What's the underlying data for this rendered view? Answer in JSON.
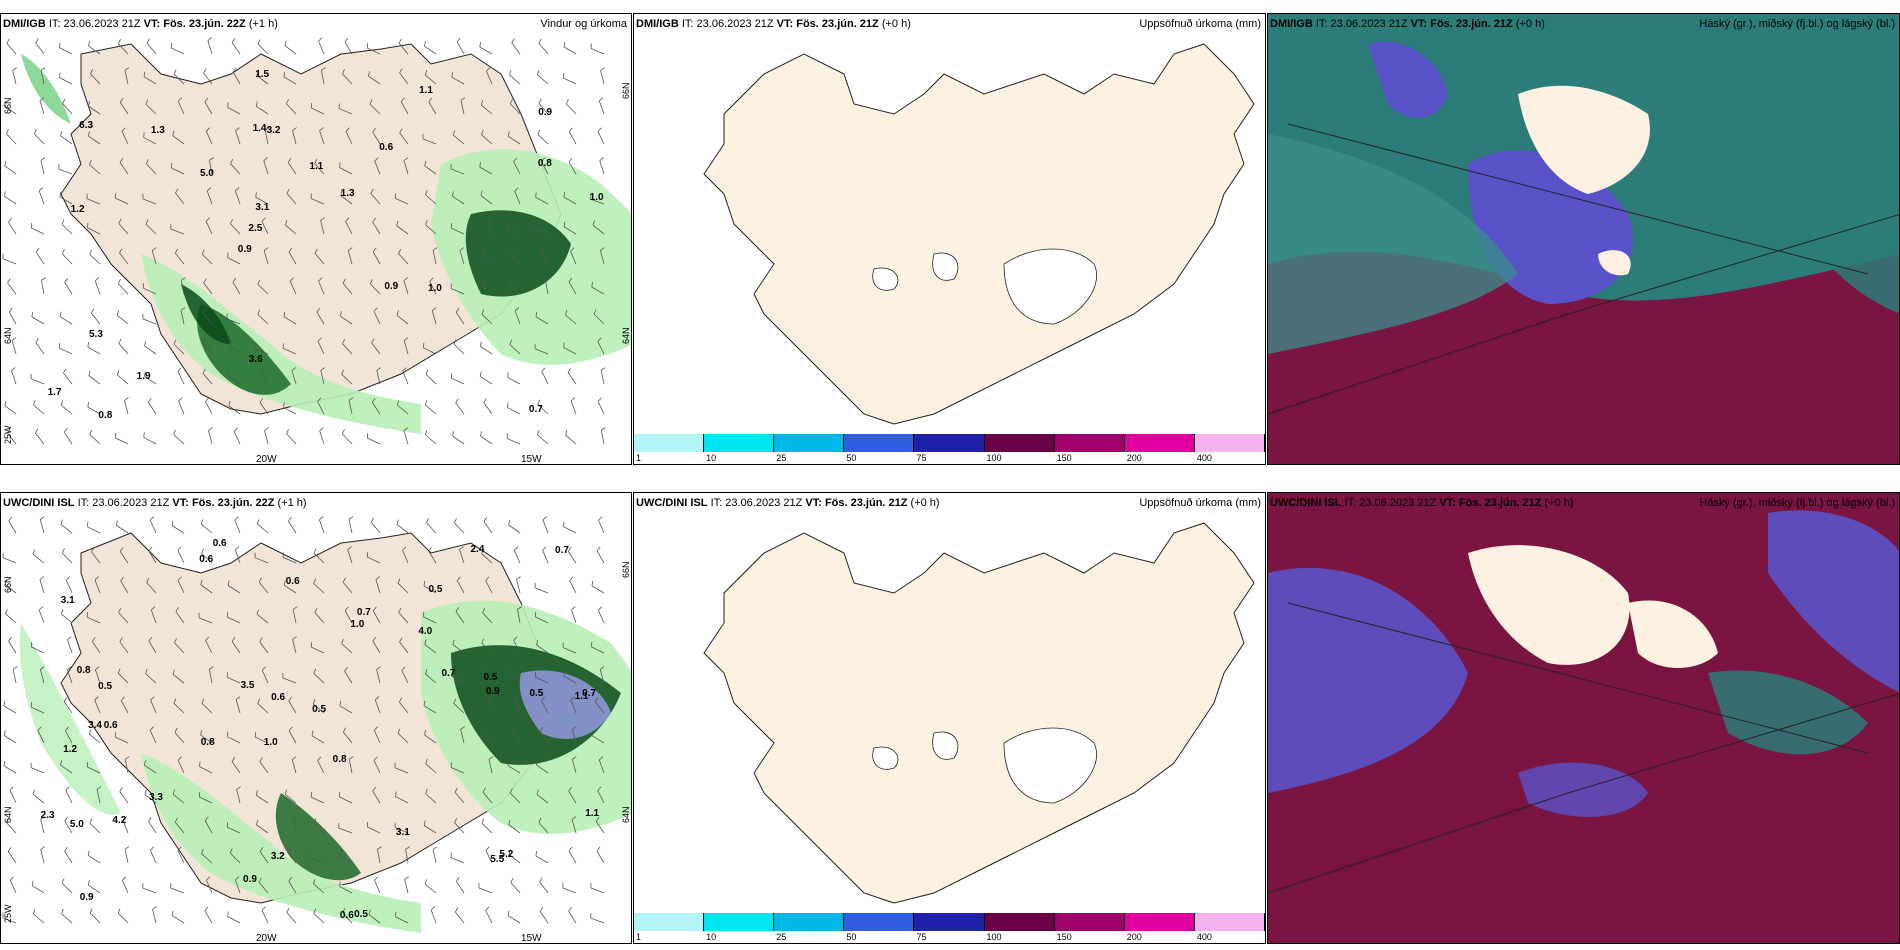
{
  "rows": [
    {
      "wind": {
        "model": "DMI/IGB",
        "it_prefix": "IT:",
        "it": "23.06.2023 21Z",
        "vt_prefix": "VT:",
        "vt": "Fös. 23.jún. 22Z",
        "lead": "(+1 h)",
        "title": "Vindur og úrkoma",
        "lon_labels": [
          "20W",
          "15W"
        ],
        "lat_labels": [
          "66N",
          "64N",
          "25W",
          "66N",
          "64N"
        ],
        "values": [
          "0.7",
          "1.2",
          "0.9",
          "0.9",
          "0.6",
          "0.8",
          "1.4",
          "1.1",
          "5.3",
          "5.0",
          "1.7",
          "1.9",
          "3.2",
          "1.3",
          "1.0",
          "6.3",
          "1.5",
          "1.0",
          "0.9",
          "0.8",
          "2.5",
          "3.6",
          "3.1",
          "1.3",
          "1.1"
        ]
      },
      "precip": {
        "model": "DMI/IGB",
        "it_prefix": "IT:",
        "it": "23.06.2023 21Z",
        "vt_prefix": "VT:",
        "vt": "Fös. 23.jún. 21Z",
        "lead": "(+0 h)",
        "title": "Uppsöfnuð úrkoma (mm)"
      },
      "cloud": {
        "model": "DMI/IGB",
        "it_prefix": "IT:",
        "it": "23.06.2023 21Z",
        "vt_prefix": "VT:",
        "vt": "Fös. 23.jún. 21Z",
        "lead": "(+0 h)",
        "title": "Háský (gr.), miðský (fj.bl.) og lágský (bl.)"
      }
    },
    {
      "wind": {
        "model": "UWC/DINI ISL",
        "it_prefix": "IT:",
        "it": "23.06.2023 21Z",
        "vt_prefix": "VT:",
        "vt": "Fös. 23.jún. 22Z",
        "lead": "(+1 h)",
        "title": "",
        "lon_labels": [
          "20W",
          "15W"
        ],
        "lat_labels": [
          "66N",
          "64N",
          "25W",
          "66N",
          "64N"
        ],
        "values": [
          "0.6",
          "0.5",
          "1.1",
          "1.0",
          "0.8",
          "0.6",
          "3.1",
          "4.0",
          "1.2",
          "1.0",
          "0.5",
          "0.9",
          "0.6",
          "0.8",
          "0.6",
          "0.5",
          "3.2",
          "2.4",
          "0.7",
          "3.3",
          "0.5",
          "3.4",
          "0.7",
          "0.5",
          "2.3",
          "0.8",
          "0.6",
          "0.9",
          "5.2",
          "5.0",
          "5.5",
          "0.7",
          "4.2",
          "3.5",
          "3.1",
          "1.1",
          "0.5",
          "0.9",
          "0.7",
          "0.6"
        ]
      },
      "precip": {
        "model": "UWC/DINI ISL",
        "it_prefix": "IT:",
        "it": "23.06.2023 21Z",
        "vt_prefix": "VT:",
        "vt": "Fös. 23.jún. 21Z",
        "lead": "(+0 h)",
        "title": "Uppsöfnuð úrkoma (mm)"
      },
      "cloud": {
        "model": "UWC/DINI ISL",
        "it_prefix": "IT:",
        "it": "23.06.2023 21Z",
        "vt_prefix": "VT:",
        "vt": "Fös. 23.jún. 21Z",
        "lead": "(+0 h)",
        "title": "Háský (gr.), miðský (fj.bl.) og lágský (bl.)"
      }
    }
  ],
  "colorbar": {
    "ticks": [
      "1",
      "10",
      "25",
      "50",
      "75",
      "100",
      "150",
      "200",
      "400"
    ],
    "colors": [
      "#b3f5f5",
      "#00e5f0",
      "#00b8e8",
      "#2f5fe0",
      "#2020a8",
      "#6a0046",
      "#a0006a",
      "#e000a0",
      "#f5b0f0"
    ]
  },
  "colors": {
    "land": "#fdf1e2",
    "land_wind": "#f2e4d6",
    "precip_light": "#b8f0b8",
    "precip_mid": "#3aa84a",
    "precip_dark": "#0b4a1a",
    "high_cloud": "#2c7d7a",
    "mid_cloud": "#5a52c8",
    "low_cloud": "#7a1440",
    "sea_cloud": "#3b8f8c"
  }
}
